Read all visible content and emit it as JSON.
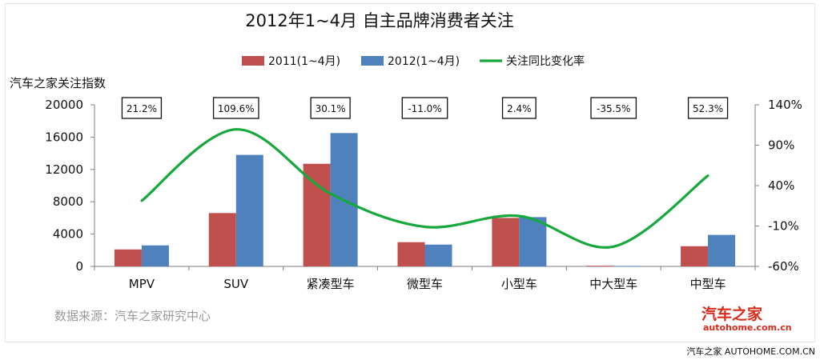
{
  "watermark_top": "汽车之家 AUTOHOME.COM.CN",
  "footer": "汽车之家 AUTOHOME.COM.CN",
  "source": "数据来源：汽车之家研究中心",
  "logo": {
    "main": "汽车之家",
    "sub": "autohome.com.cn"
  },
  "chart_data": {
    "type": "bar",
    "title": "2012年1~4月 自主品牌消费者关注",
    "ylabel": "汽车之家关注指数",
    "xlabel": "",
    "categories": [
      "MPV",
      "SUV",
      "紧凑型车",
      "微型车",
      "小型车",
      "中大型车",
      "中型车"
    ],
    "series": [
      {
        "name": "2011(1~4月)",
        "type": "bar",
        "axis": "left",
        "color": "#c0504d",
        "values": [
          2100,
          6600,
          12700,
          3000,
          6000,
          80,
          2500
        ]
      },
      {
        "name": "2012(1~4月)",
        "type": "bar",
        "axis": "left",
        "color": "#4f81bd",
        "values": [
          2600,
          13800,
          16500,
          2700,
          6100,
          55,
          3900
        ]
      },
      {
        "name": "关注同比变化率",
        "type": "line",
        "axis": "right",
        "color": "#16a83c",
        "values": [
          21.2,
          109.6,
          30.1,
          -11.0,
          2.4,
          -35.5,
          52.3
        ]
      }
    ],
    "annotations": [
      "21.2%",
      "109.6%",
      "30.1%",
      "-11.0%",
      "2.4%",
      "-35.5%",
      "52.3%"
    ],
    "ylim": [
      0,
      20000
    ],
    "yticks": [
      "20000",
      "16000",
      "12000",
      "8000",
      "4000",
      "0"
    ],
    "y2lim": [
      -60,
      140
    ],
    "y2ticks": [
      "140%",
      "90%",
      "40%",
      "-10%",
      "-60%"
    ],
    "legend_position": "top",
    "grid": false
  }
}
